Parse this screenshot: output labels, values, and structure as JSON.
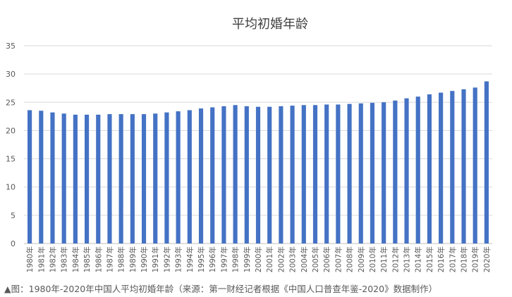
{
  "chart_data": {
    "type": "bar",
    "title": "平均初婚年龄",
    "xlabel": "",
    "ylabel": "",
    "ylim": [
      0,
      35
    ],
    "yticks": [
      0,
      5,
      10,
      15,
      20,
      25,
      30,
      35
    ],
    "grid": true,
    "bar_color": "#4472C4",
    "categories": [
      "1980年",
      "1981年",
      "1982年",
      "1983年",
      "1984年",
      "1985年",
      "1986年",
      "1987年",
      "1988年",
      "1989年",
      "1990年",
      "1991年",
      "1992年",
      "1993年",
      "1994年",
      "1995年",
      "1996年",
      "1997年",
      "1998年",
      "1999年",
      "2000年",
      "2001年",
      "2002年",
      "2003年",
      "2004年",
      "2005年",
      "2006年",
      "2007年",
      "2008年",
      "2009年",
      "2010年",
      "2011年",
      "2012年",
      "2013年",
      "2014年",
      "2015年",
      "2016年",
      "2017年",
      "2018年",
      "2019年",
      "2020年"
    ],
    "values": [
      23.6,
      23.5,
      23.2,
      23.0,
      22.8,
      22.8,
      22.8,
      22.9,
      22.9,
      22.9,
      22.9,
      23.0,
      23.2,
      23.4,
      23.6,
      23.9,
      24.1,
      24.3,
      24.5,
      24.3,
      24.2,
      24.2,
      24.3,
      24.4,
      24.5,
      24.5,
      24.6,
      24.6,
      24.7,
      24.8,
      24.9,
      25.0,
      25.3,
      25.7,
      26.0,
      26.4,
      26.7,
      27.0,
      27.3,
      27.6,
      28.7
    ]
  },
  "caption": "▲图：1980年-2020年中国人平均初婚年龄（来源：第一财经记者根据《中国人口普查年鉴-2020》数据制作）"
}
